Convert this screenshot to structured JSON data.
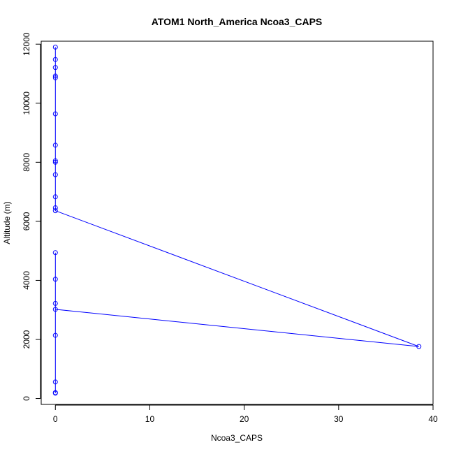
{
  "chart_data": {
    "type": "scatter",
    "title": "ATOM1 North_America Ncoa3_CAPS",
    "xlabel": "Ncoa3_CAPS",
    "ylabel": "Altitude (m)",
    "xlim": [
      -1.5,
      40
    ],
    "ylim": [
      -200,
      12100
    ],
    "x_ticks": [
      0,
      10,
      20,
      30,
      40
    ],
    "y_ticks": [
      0,
      2000,
      4000,
      6000,
      8000,
      10000,
      12000
    ],
    "grid": false,
    "line_color": "#0000ff",
    "marker_color": "#0000ff",
    "series": [
      {
        "points": [
          {
            "x": 0,
            "y": 11900
          },
          {
            "x": 0,
            "y": 11480
          },
          {
            "x": 0,
            "y": 11210
          },
          {
            "x": 0,
            "y": 10920
          },
          {
            "x": 0,
            "y": 10860
          },
          {
            "x": 0,
            "y": 9640
          },
          {
            "x": 0,
            "y": 8580
          },
          {
            "x": 0,
            "y": 8050
          },
          {
            "x": 0,
            "y": 8000
          },
          {
            "x": 0,
            "y": 7580
          },
          {
            "x": 0,
            "y": 6830
          },
          {
            "x": 0,
            "y": 6460
          },
          {
            "x": 0,
            "y": 6360
          },
          {
            "x": 38.5,
            "y": 1760
          },
          {
            "x": 0,
            "y": 3020
          },
          {
            "x": 0,
            "y": 3220
          },
          {
            "x": 0,
            "y": 4040
          },
          {
            "x": 0,
            "y": 4940
          },
          {
            "x": 0,
            "y": 2140
          },
          {
            "x": 0,
            "y": 560
          },
          {
            "x": 0,
            "y": 200
          },
          {
            "x": 0,
            "y": 180
          }
        ]
      }
    ]
  }
}
